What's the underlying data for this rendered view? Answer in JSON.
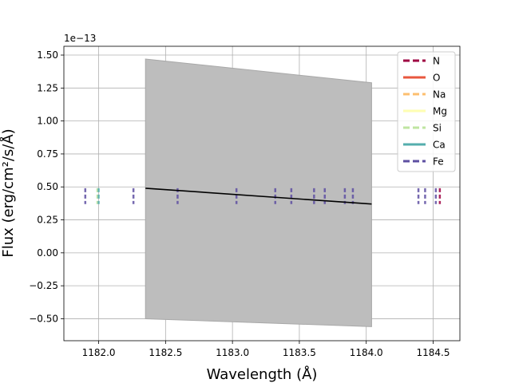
{
  "chart_data": {
    "type": "line",
    "xlabel": "Wavelength (Å)",
    "ylabel": "Flux (erg/cm²/s/Å)",
    "y_offset_label": "1e−13",
    "xlim": [
      1181.74,
      1184.7
    ],
    "ylim": [
      -0.6667,
      1.5667
    ],
    "y_scale_exponent": -13,
    "grid": true,
    "legend_position": "top-right",
    "x_ticks": [
      1182.0,
      1182.5,
      1183.0,
      1183.5,
      1184.0,
      1184.5
    ],
    "x_tick_labels": [
      "1182.0",
      "1182.5",
      "1183.0",
      "1183.5",
      "1184.0",
      "1184.5"
    ],
    "y_ticks": [
      -0.5,
      -0.25,
      0.0,
      0.25,
      0.5,
      0.75,
      1.0,
      1.25,
      1.5
    ],
    "y_tick_labels": [
      "−0.50",
      "−0.25",
      "0.00",
      "0.25",
      "0.50",
      "0.75",
      "1.00",
      "1.25",
      "1.50"
    ],
    "model_line": {
      "color": "#000000",
      "x": [
        1182.35,
        1184.04
      ],
      "y": [
        0.49,
        0.37
      ]
    },
    "uncertainty_band": {
      "color": "#bdbdbd",
      "x": [
        1182.35,
        1184.04
      ],
      "upper": [
        1.47,
        1.29
      ],
      "lower": [
        -0.5,
        -0.56
      ]
    },
    "line_marker_y": [
      0.37,
      0.49
    ],
    "series": [
      {
        "name": "N",
        "color": "#9e0142",
        "style": "dashed",
        "lines": [
          1184.55
        ]
      },
      {
        "name": "O",
        "color": "#e8573e",
        "style": "solid",
        "lines": []
      },
      {
        "name": "Na",
        "color": "#fdbf6f",
        "style": "dashed",
        "lines": []
      },
      {
        "name": "Mg",
        "color": "#fefeb2",
        "style": "solid",
        "lines": []
      },
      {
        "name": "Si",
        "color": "#bfe5a0",
        "style": "dashed",
        "lines": [
          1181.99
        ]
      },
      {
        "name": "Ca",
        "color": "#54aead",
        "style": "solid",
        "lines": [
          1182.0
        ]
      },
      {
        "name": "Fe",
        "color": "#5e4fa2",
        "style": "dashed",
        "lines": [
          1181.9,
          1182.26,
          1182.59,
          1183.03,
          1183.32,
          1183.44,
          1183.61,
          1183.69,
          1183.84,
          1183.9,
          1184.39,
          1184.44,
          1184.52
        ]
      }
    ]
  }
}
